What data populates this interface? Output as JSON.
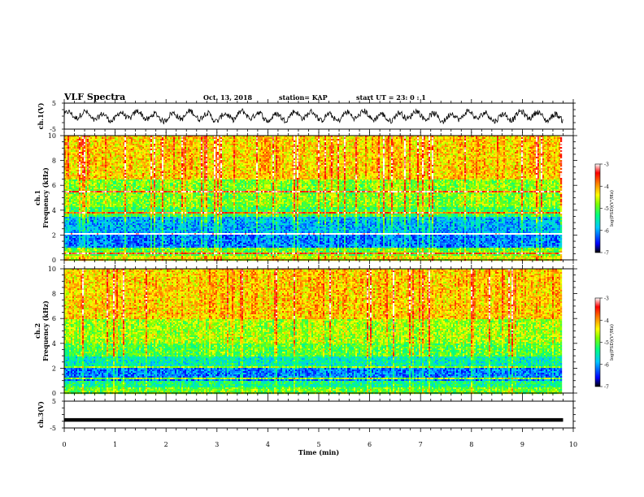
{
  "header": {
    "title": "VLF Spectra",
    "date": "Oct. 13, 2018",
    "station": "station= KAP",
    "start_ut": "start  UT  =   23: 0  : 1"
  },
  "chart_data": [
    {
      "type": "line",
      "name": "ch1-waveform",
      "ylabel": "ch.1(V)",
      "ylim": [
        -5,
        5
      ],
      "yticks": [
        "5",
        "-5"
      ],
      "xlim": [
        0,
        10
      ],
      "x_extent_min": 9.8,
      "style": "noisy black trace oscillating roughly between -2 and 2 V"
    },
    {
      "type": "heatmap",
      "name": "ch1-spectrogram",
      "ylabel": "ch.1\nFrequency  (kHz)",
      "ylim": [
        0,
        10
      ],
      "yticks": [
        "0",
        "2",
        "4",
        "6",
        "8",
        "10"
      ],
      "xlim": [
        0,
        10
      ],
      "x_extent_min": 9.8,
      "colorbar": {
        "label": "log(PSD)(V²/Hz)",
        "range": [
          -7,
          -3
        ],
        "ticks": [
          "-3",
          "-4",
          "-5",
          "-6",
          "-7"
        ]
      },
      "colors": [
        "#000000",
        "#0000ff",
        "#00c8ff",
        "#00ff80",
        "#80ff00",
        "#ffff00",
        "#ff8000",
        "#ff0000",
        "#ffffff"
      ],
      "bands_khz": [
        {
          "from": 0.0,
          "to": 0.3,
          "level": -4.5
        },
        {
          "from": 0.3,
          "to": 1.0,
          "level": -5.0
        },
        {
          "from": 1.0,
          "to": 2.0,
          "level": -6.2
        },
        {
          "from": 2.0,
          "to": 2.2,
          "level": -4.2
        },
        {
          "from": 2.2,
          "to": 3.5,
          "level": -6.0
        },
        {
          "from": 3.5,
          "to": 4.2,
          "level": -5.2
        },
        {
          "from": 4.2,
          "to": 6.5,
          "level": -4.9
        },
        {
          "from": 6.5,
          "to": 10.0,
          "level": -4.3
        }
      ],
      "lines_khz": [
        0.5,
        2.1,
        3.8,
        5.5
      ]
    },
    {
      "type": "heatmap",
      "name": "ch2-spectrogram",
      "ylabel": "ch.2\nFrequency  (kHz)",
      "ylim": [
        0,
        10
      ],
      "yticks": [
        "0",
        "2",
        "4",
        "6",
        "8",
        "10"
      ],
      "xlim": [
        0,
        10
      ],
      "x_extent_min": 9.8,
      "colorbar": {
        "label": "log(PSD)(V²/Hz)",
        "range": [
          -7,
          -3
        ],
        "ticks": [
          "-3",
          "-4",
          "-5",
          "-6",
          "-7"
        ]
      },
      "colors": [
        "#000000",
        "#0000ff",
        "#00c8ff",
        "#00ff80",
        "#80ff00",
        "#ffff00",
        "#ff8000",
        "#ff0000",
        "#ffffff"
      ],
      "bands_khz": [
        {
          "from": 0.0,
          "to": 0.4,
          "level": -5.0
        },
        {
          "from": 0.4,
          "to": 1.0,
          "level": -5.4
        },
        {
          "from": 1.0,
          "to": 2.2,
          "level": -6.2
        },
        {
          "from": 2.2,
          "to": 3.0,
          "level": -5.6
        },
        {
          "from": 3.0,
          "to": 4.0,
          "level": -5.1
        },
        {
          "from": 4.0,
          "to": 6.0,
          "level": -4.8
        },
        {
          "from": 6.0,
          "to": 10.0,
          "level": -4.3
        }
      ],
      "lines_khz": [
        1.2,
        2.1
      ]
    },
    {
      "type": "line",
      "name": "ch3-waveform",
      "ylabel": "ch.3(V)",
      "ylim": [
        -5,
        5
      ],
      "yticks": [
        "5",
        "-5"
      ],
      "xlim": [
        0,
        10
      ],
      "x_extent_min": 9.8,
      "constant_value": -2,
      "style": "flat thick black line"
    }
  ],
  "xaxis": {
    "label": "Time  (min)",
    "ticks": [
      "0",
      "1",
      "2",
      "3",
      "4",
      "5",
      "6",
      "7",
      "8",
      "9",
      "10"
    ]
  }
}
